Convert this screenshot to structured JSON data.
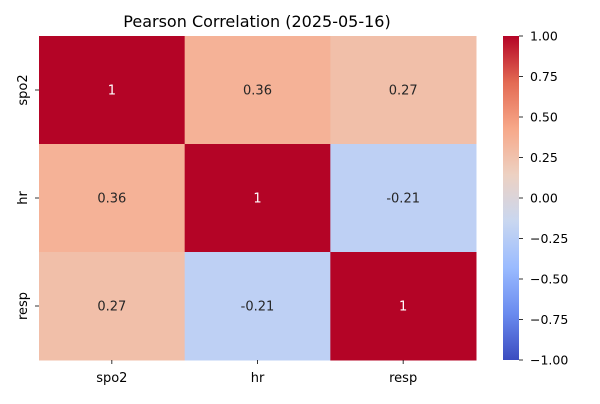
{
  "chart_data": {
    "type": "heatmap",
    "title": "Pearson Correlation (2025-05-16)",
    "xlabel": "",
    "ylabel": "",
    "x_categories": [
      "spo2",
      "hr",
      "resp"
    ],
    "y_categories": [
      "spo2",
      "hr",
      "resp"
    ],
    "values": [
      [
        1,
        0.36,
        0.27
      ],
      [
        0.36,
        1,
        -0.21
      ],
      [
        0.27,
        -0.21,
        1
      ]
    ],
    "annotations": [
      [
        "1",
        "0.36",
        "0.27"
      ],
      [
        "0.36",
        "1",
        "-0.21"
      ],
      [
        "0.27",
        "-0.21",
        "1"
      ]
    ],
    "colormap": "coolwarm",
    "vmin": -1.0,
    "vmax": 1.0,
    "colorbar": {
      "ticks": [
        1.0,
        0.75,
        0.5,
        0.25,
        0.0,
        -0.25,
        -0.5,
        -0.75,
        -1.0
      ],
      "tick_labels": [
        "1.00",
        "0.75",
        "0.50",
        "0.25",
        "0.00",
        "−0.25",
        "−0.50",
        "−0.75",
        "−1.00"
      ],
      "colors": [
        "#3b4cc0",
        "#6a8bef",
        "#9abbff",
        "#c9d7f0",
        "#edd1c2",
        "#f7a889",
        "#e36a53",
        "#b40426"
      ]
    },
    "grid": false,
    "legend": "right"
  }
}
